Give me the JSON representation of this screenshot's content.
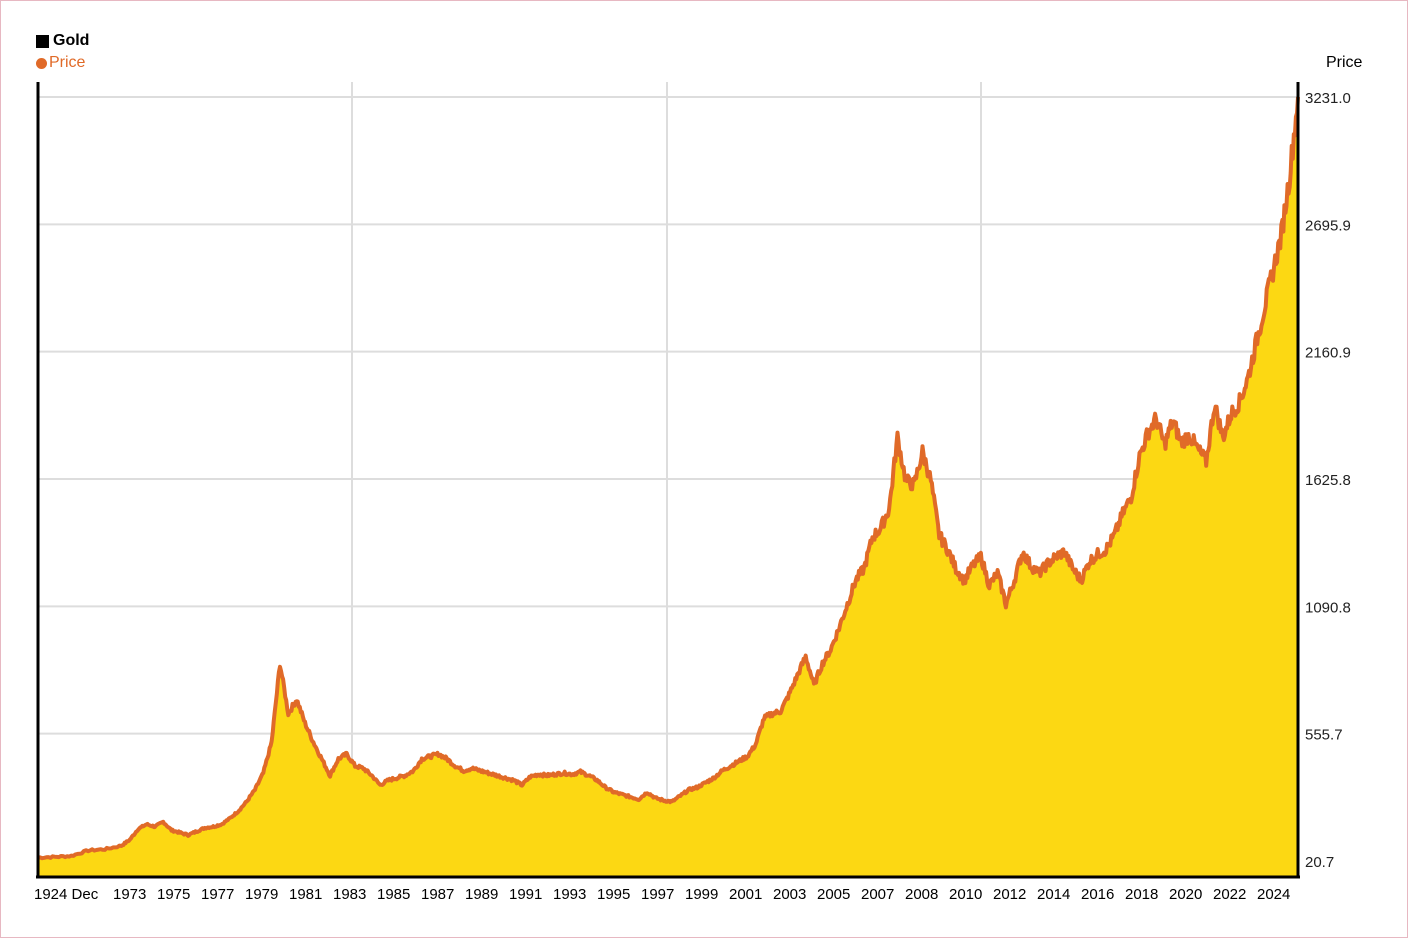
{
  "legend": {
    "title": "Gold",
    "title_color": "#000000",
    "series_label": "Price",
    "series_color": "#e06a28"
  },
  "chart_data": {
    "type": "area",
    "title": "",
    "xlabel": "",
    "ylabel": "Price",
    "ylim": [
      20.7,
      3231.0
    ],
    "yticks": [
      20.7,
      555.7,
      1090.8,
      1625.8,
      2160.9,
      2695.9,
      3231.0
    ],
    "ytick_labels": [
      "20.7",
      "555.7",
      "1090.8",
      "1625.8",
      "2160.9",
      "2695.9",
      "3231.0"
    ],
    "xtick_labels": [
      "1924 Dec",
      "1973",
      "1975",
      "1977",
      "1979",
      "1981",
      "1983",
      "1985",
      "1987",
      "1989",
      "1991",
      "1993",
      "1995",
      "1997",
      "1999",
      "2001",
      "2003",
      "2005",
      "2007",
      "2008",
      "2010",
      "2012",
      "2014",
      "2016",
      "2018",
      "2020",
      "2022",
      "2024"
    ],
    "grid": true,
    "fill_color": "#fcd813",
    "line_color": "#e06a28",
    "series": [
      {
        "name": "Price",
        "points": [
          [
            0,
            35
          ],
          [
            2,
            38
          ],
          [
            4,
            42
          ],
          [
            6,
            65
          ],
          [
            8,
            70
          ],
          [
            10,
            85
          ],
          [
            11,
            110
          ],
          [
            12,
            155
          ],
          [
            13,
            175
          ],
          [
            14,
            165
          ],
          [
            15,
            185
          ],
          [
            16,
            150
          ],
          [
            17,
            140
          ],
          [
            18,
            130
          ],
          [
            19,
            145
          ],
          [
            20,
            160
          ],
          [
            21,
            165
          ],
          [
            22,
            175
          ],
          [
            23,
            200
          ],
          [
            24,
            230
          ],
          [
            25,
            270
          ],
          [
            26,
            320
          ],
          [
            27,
            390
          ],
          [
            28,
            520
          ],
          [
            29,
            850
          ],
          [
            30,
            640
          ],
          [
            31,
            700
          ],
          [
            32,
            600
          ],
          [
            33,
            520
          ],
          [
            34,
            450
          ],
          [
            35,
            380
          ],
          [
            36,
            450
          ],
          [
            37,
            470
          ],
          [
            38,
            420
          ],
          [
            39,
            410
          ],
          [
            40,
            380
          ],
          [
            41,
            340
          ],
          [
            42,
            360
          ],
          [
            43,
            370
          ],
          [
            44,
            380
          ],
          [
            45,
            400
          ],
          [
            46,
            450
          ],
          [
            47,
            460
          ],
          [
            48,
            470
          ],
          [
            49,
            450
          ],
          [
            50,
            420
          ],
          [
            51,
            400
          ],
          [
            52,
            410
          ],
          [
            53,
            400
          ],
          [
            54,
            390
          ],
          [
            55,
            380
          ],
          [
            56,
            370
          ],
          [
            57,
            360
          ],
          [
            58,
            340
          ],
          [
            59,
            375
          ],
          [
            60,
            385
          ],
          [
            61,
            380
          ],
          [
            62,
            385
          ],
          [
            63,
            390
          ],
          [
            64,
            385
          ],
          [
            65,
            395
          ],
          [
            66,
            380
          ],
          [
            67,
            360
          ],
          [
            68,
            330
          ],
          [
            69,
            310
          ],
          [
            70,
            300
          ],
          [
            71,
            290
          ],
          [
            72,
            280
          ],
          [
            73,
            310
          ],
          [
            74,
            285
          ],
          [
            75,
            275
          ],
          [
            76,
            270
          ],
          [
            77,
            295
          ],
          [
            78,
            320
          ],
          [
            79,
            330
          ],
          [
            80,
            350
          ],
          [
            81,
            370
          ],
          [
            82,
            400
          ],
          [
            83,
            420
          ],
          [
            84,
            440
          ],
          [
            85,
            460
          ],
          [
            86,
            510
          ],
          [
            87,
            620
          ],
          [
            88,
            640
          ],
          [
            89,
            650
          ],
          [
            90,
            720
          ],
          [
            91,
            800
          ],
          [
            92,
            880
          ],
          [
            93,
            760
          ],
          [
            94,
            850
          ],
          [
            95,
            910
          ],
          [
            96,
            1000
          ],
          [
            97,
            1100
          ],
          [
            98,
            1200
          ],
          [
            99,
            1250
          ],
          [
            100,
            1380
          ],
          [
            101,
            1420
          ],
          [
            102,
            1500
          ],
          [
            103,
            1800
          ],
          [
            104,
            1620
          ],
          [
            105,
            1600
          ],
          [
            106,
            1740
          ],
          [
            107,
            1620
          ],
          [
            108,
            1390
          ],
          [
            109,
            1330
          ],
          [
            110,
            1250
          ],
          [
            111,
            1200
          ],
          [
            112,
            1260
          ],
          [
            113,
            1300
          ],
          [
            114,
            1180
          ],
          [
            115,
            1230
          ],
          [
            116,
            1100
          ],
          [
            117,
            1200
          ],
          [
            118,
            1320
          ],
          [
            119,
            1260
          ],
          [
            120,
            1230
          ],
          [
            121,
            1270
          ],
          [
            122,
            1300
          ],
          [
            123,
            1320
          ],
          [
            124,
            1250
          ],
          [
            125,
            1200
          ],
          [
            126,
            1280
          ],
          [
            127,
            1310
          ],
          [
            128,
            1330
          ],
          [
            129,
            1390
          ],
          [
            130,
            1480
          ],
          [
            131,
            1550
          ],
          [
            132,
            1720
          ],
          [
            133,
            1820
          ],
          [
            134,
            1880
          ],
          [
            135,
            1770
          ],
          [
            136,
            1870
          ],
          [
            137,
            1780
          ],
          [
            138,
            1810
          ],
          [
            139,
            1750
          ],
          [
            140,
            1700
          ],
          [
            141,
            1940
          ],
          [
            142,
            1800
          ],
          [
            143,
            1900
          ],
          [
            144,
            1950
          ],
          [
            145,
            2050
          ],
          [
            146,
            2200
          ],
          [
            147,
            2350
          ],
          [
            148,
            2500
          ],
          [
            149,
            2650
          ],
          [
            150,
            2900
          ],
          [
            151,
            3231
          ]
        ]
      }
    ]
  }
}
